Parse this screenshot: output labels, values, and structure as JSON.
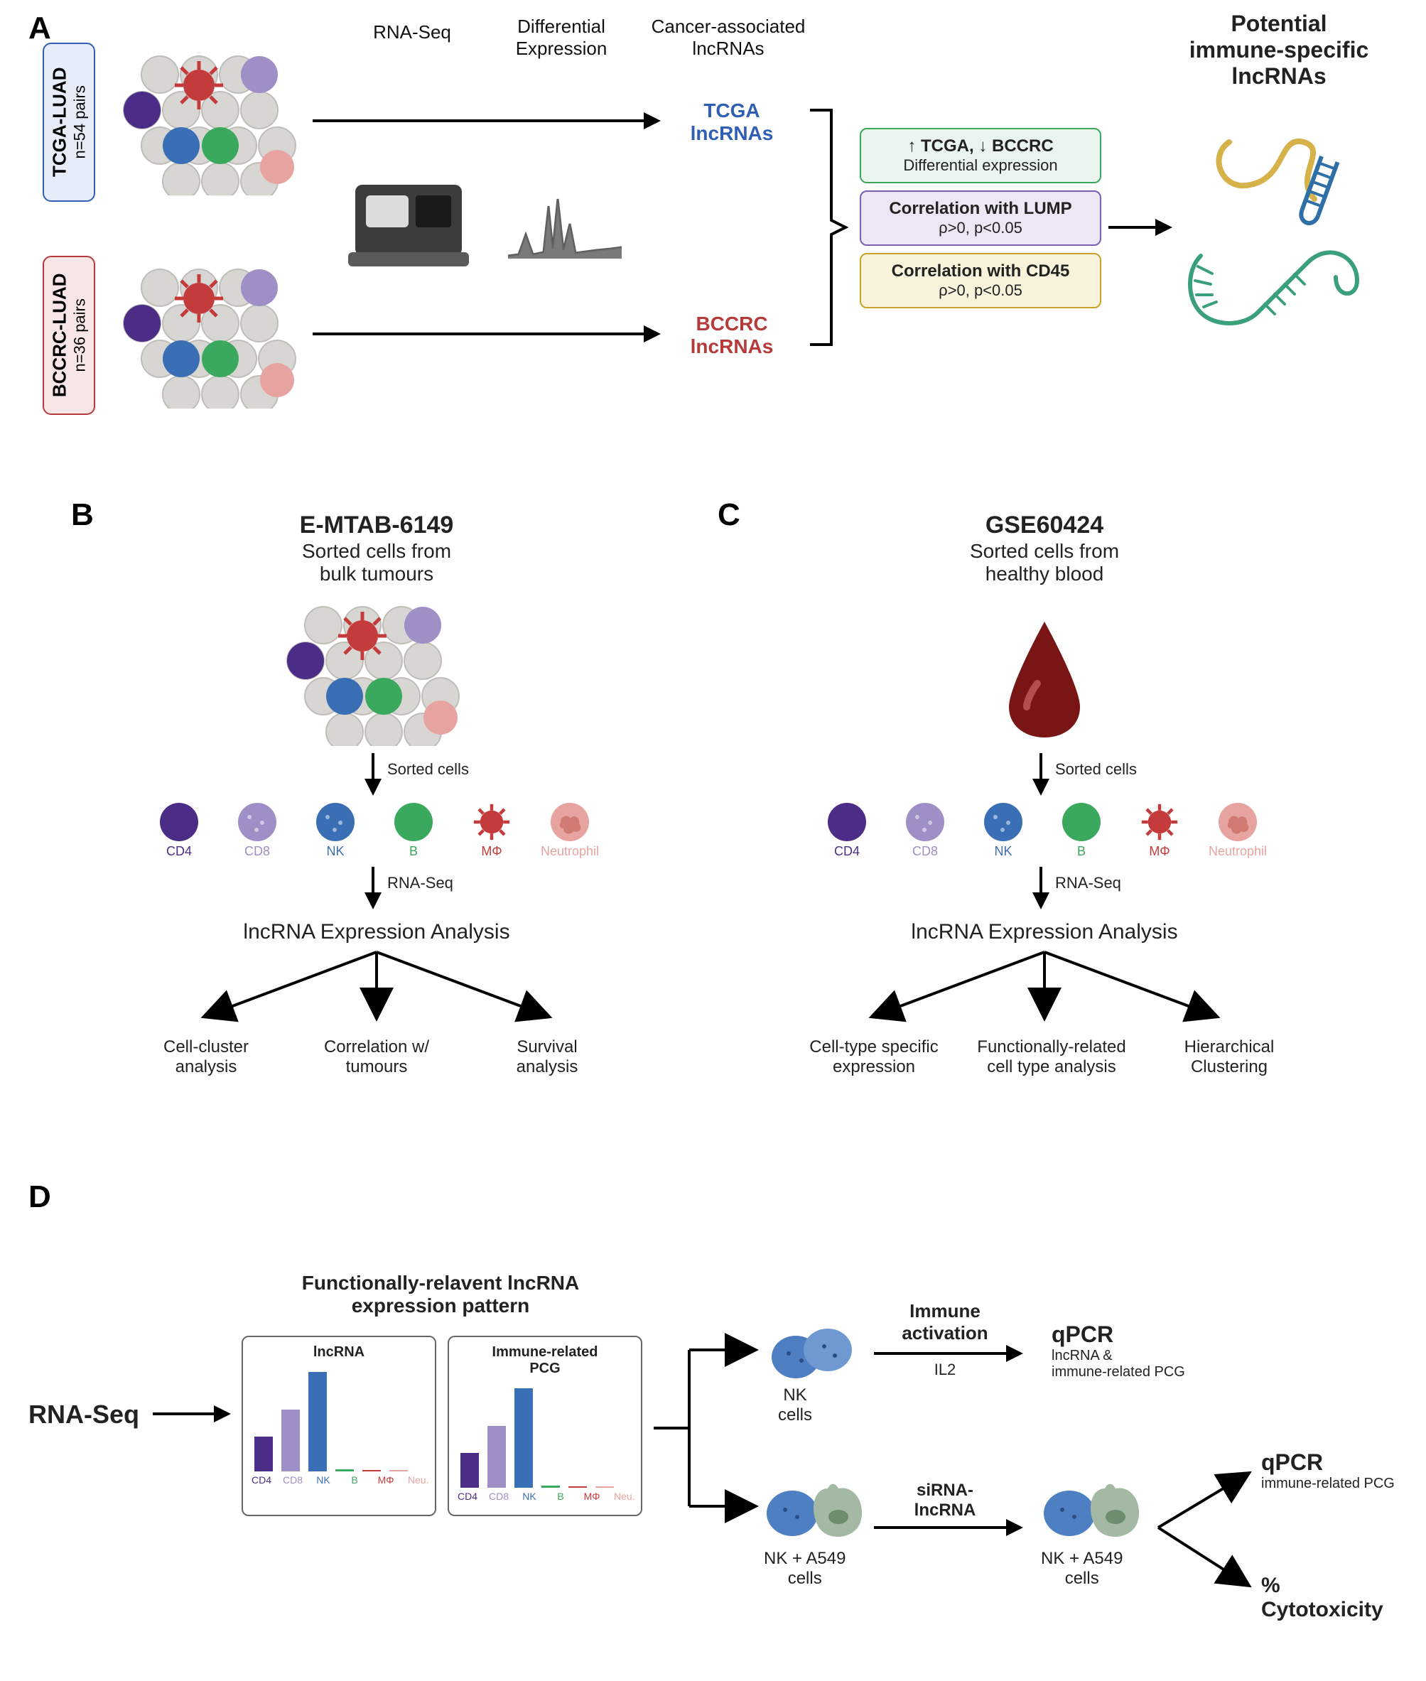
{
  "palette": {
    "tcga_blue": "#2f5fb5",
    "bccrc_red": "#b73a3a",
    "cd4": "#4b2d87",
    "cd8": "#a08ec7",
    "nk": "#3b6fb5",
    "b": "#3aa85d",
    "mphi": "#c33b3b",
    "neut": "#e6a3a0",
    "grey_cell": "#d8d6d2",
    "seq_dark": "#3c3c3c",
    "seq_mid": "#5a5a5a",
    "crit_green_border": "#3aa85d",
    "crit_green_bg": "#e9f5ec",
    "crit_purple_border": "#7a5fb5",
    "crit_purple_bg": "#ece6f5",
    "crit_yellow_border": "#c9a227",
    "crit_yellow_bg": "#faf3dc",
    "rna_yellow": "#d6b24a",
    "rna_blue": "#2f6fa8",
    "rna_green": "#3aa07a",
    "blood_red": "#7a1515"
  },
  "panelA": {
    "label": "A",
    "cohort1": {
      "name": "TCGA-LUAD",
      "n": "n=54 pairs"
    },
    "cohort2": {
      "name": "BCCRC-LUAD",
      "n": "n=36 pairs"
    },
    "step1": "RNA-Seq",
    "step2": "Differential\nExpression",
    "step3": "Cancer-associated\nlncRNAs",
    "lnc1": "TCGA\nlncRNAs",
    "lnc2": "BCCRC\nlncRNAs",
    "criteria": [
      {
        "top": "↑ TCGA, ↓ BCCRC",
        "sub": "Differential expression"
      },
      {
        "top": "Correlation with LUMP",
        "sub": "ρ>0, p<0.05"
      },
      {
        "top": "Correlation with CD45",
        "sub": "ρ>0, p<0.05"
      }
    ],
    "output_title": "Potential\nimmune-specific\nlncRNAs"
  },
  "panelB": {
    "label": "B",
    "title": "E-MTAB-6149",
    "sub": "Sorted cells from\nbulk tumours",
    "sorted": "Sorted cells",
    "rnaseq": "RNA-Seq",
    "analysis": "lncRNA Expression Analysis",
    "targets": [
      "Cell-cluster\nanalysis",
      "Correlation w/\ntumours",
      "Survival\nanalysis"
    ]
  },
  "panelC": {
    "label": "C",
    "title": "GSE60424",
    "sub": "Sorted cells from\nhealthy blood",
    "sorted": "Sorted cells",
    "rnaseq": "RNA-Seq",
    "analysis": "lncRNA Expression Analysis",
    "targets": [
      "Cell-type specific\nexpression",
      "Functionally-related\ncell type analysis",
      "Hierarchical\nClustering"
    ]
  },
  "panelD": {
    "label": "D",
    "rnaseq": "RNA-Seq",
    "header": "Functionally-relavent lncRNA\nexpression pattern",
    "chart1": {
      "title": "lncRNA",
      "type": "bar",
      "categories": [
        "CD4",
        "CD8",
        "NK",
        "B",
        "MΦ",
        "Neu."
      ],
      "values_relative": [
        0.35,
        0.62,
        1.0,
        0.02,
        0.0,
        0.0
      ],
      "bar_colors": [
        "#4b2d87",
        "#a08ec7",
        "#3b6fb5",
        "#3aa85d",
        "#c33b3b",
        "#e6a3a0"
      ]
    },
    "chart2": {
      "title": "Immune-related\nPCG",
      "type": "bar",
      "categories": [
        "CD4",
        "CD8",
        "NK",
        "B",
        "MΦ",
        "Neu."
      ],
      "values_relative": [
        0.35,
        0.62,
        1.0,
        0.02,
        0.0,
        0.0
      ],
      "bar_colors": [
        "#4b2d87",
        "#a08ec7",
        "#3b6fb5",
        "#3aa85d",
        "#c33b3b",
        "#e6a3a0"
      ]
    },
    "nk_label": "NK\ncells",
    "multi_act": {
      "top": "Immune\nactivation",
      "bottom": "IL2"
    },
    "nk_a549": "NK + A549\ncells",
    "siRNA": "siRNA-\nlncRNA",
    "qpcr": {
      "title": "qPCR",
      "sub": "lncRNA &\nimmune-related PCG"
    },
    "qpcr2": {
      "title": "qPCR",
      "sub": "immune-related PCG"
    },
    "cyto": "% Cytotoxicity"
  },
  "cell_types": [
    {
      "name": "CD4",
      "color": "#4b2d87"
    },
    {
      "name": "CD8",
      "color": "#a08ec7"
    },
    {
      "name": "NK",
      "color": "#3b6fb5"
    },
    {
      "name": "B",
      "color": "#3aa85d"
    },
    {
      "name": "MΦ",
      "color": "#c33b3b"
    },
    {
      "name": "Neutrophil",
      "color": "#e6a3a0"
    }
  ]
}
